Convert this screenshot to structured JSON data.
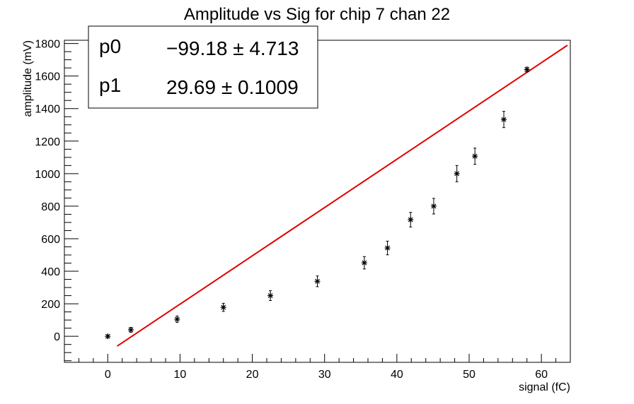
{
  "chart_data": {
    "type": "scatter",
    "title": "Amplitude vs Sig for chip 7 chan 22",
    "xlabel": "signal (fC)",
    "ylabel": "amplitude (mV)",
    "xlim": [
      -6,
      64
    ],
    "ylim": [
      -160,
      1820
    ],
    "x_ticks": [
      0,
      10,
      20,
      30,
      40,
      50,
      60
    ],
    "y_ticks": [
      0,
      200,
      400,
      600,
      800,
      1000,
      1200,
      1400,
      1600,
      1800
    ],
    "grid": false,
    "points": [
      {
        "x": 0.0,
        "y": 0,
        "err": 8
      },
      {
        "x": 3.2,
        "y": 40,
        "err": 15
      },
      {
        "x": 9.6,
        "y": 105,
        "err": 20
      },
      {
        "x": 16.0,
        "y": 178,
        "err": 25
      },
      {
        "x": 22.5,
        "y": 250,
        "err": 30
      },
      {
        "x": 29.0,
        "y": 338,
        "err": 33
      },
      {
        "x": 35.5,
        "y": 452,
        "err": 38
      },
      {
        "x": 38.7,
        "y": 543,
        "err": 42
      },
      {
        "x": 41.9,
        "y": 717,
        "err": 45
      },
      {
        "x": 45.1,
        "y": 800,
        "err": 48
      },
      {
        "x": 48.3,
        "y": 1000,
        "err": 50
      },
      {
        "x": 50.8,
        "y": 1107,
        "err": 50
      },
      {
        "x": 54.8,
        "y": 1333,
        "err": 50
      },
      {
        "x": 58.0,
        "y": 1640,
        "err": 15
      }
    ],
    "fit": {
      "function": "p0 + p1*x",
      "x_range": [
        1.3,
        63.6
      ],
      "color": "#e00000",
      "p0": -99.18,
      "p1": 29.69
    },
    "stats_box": {
      "rows": [
        {
          "name": "p0",
          "value": "−99.18 ± 4.713"
        },
        {
          "name": "p1",
          "value": "29.69 ± 0.1009"
        }
      ]
    }
  }
}
